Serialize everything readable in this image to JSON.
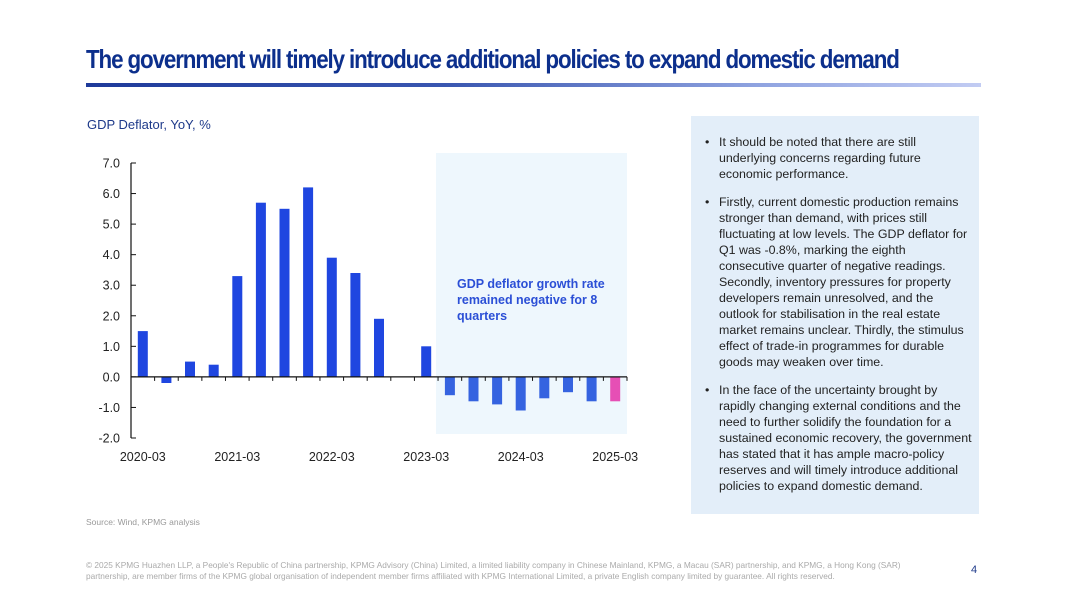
{
  "header": {
    "title": "The government will timely introduce additional policies to expand domestic demand"
  },
  "chart_data": {
    "type": "bar",
    "title": "GDP Deflator, YoY, %",
    "xlabel": "",
    "ylabel": "GDP Deflator, YoY, %",
    "ylim": [
      -2.0,
      7.0
    ],
    "yticks": [
      "7.0",
      "6.0",
      "5.0",
      "4.0",
      "3.0",
      "2.0",
      "1.0",
      "0.0",
      "-1.0",
      "-2.0"
    ],
    "xtick_labels": [
      "2020-03",
      "2021-03",
      "2022-03",
      "2023-03",
      "2024-03",
      "2025-03"
    ],
    "grid": false,
    "categories": [
      "2020-03",
      "2020-06",
      "2020-09",
      "2020-12",
      "2021-03",
      "2021-06",
      "2021-09",
      "2021-12",
      "2022-03",
      "2022-06",
      "2022-09",
      "2022-12",
      "2023-03",
      "2023-06",
      "2023-09",
      "2023-12",
      "2024-03",
      "2024-06",
      "2024-09",
      "2024-12",
      "2025-03"
    ],
    "series": [
      {
        "name": "GDP Deflator YoY",
        "values": [
          1.5,
          -0.2,
          0.5,
          0.4,
          3.3,
          5.7,
          5.5,
          6.2,
          3.9,
          3.4,
          1.9,
          0.0,
          1.0,
          -0.6,
          -0.8,
          -0.9,
          -1.1,
          -0.7,
          -0.5,
          -0.8,
          -0.8
        ]
      }
    ],
    "colors": {
      "bar": "#1f46e0",
      "bar_negative_period": "#3563e0",
      "bar_latest": "#e64fb5",
      "highlight_fill": "#eef7fd",
      "annotation_text": "#2b4fd6"
    },
    "highlight": {
      "from": "2023-06",
      "to": "2025-03",
      "annotation": "GDP deflator growth rate remained negative for 8 quarters"
    }
  },
  "panel": {
    "bullet_glyph": "•",
    "bullets": [
      "It should be noted that there are still underlying concerns regarding future economic performance.",
      "Firstly, current domestic production remains stronger than demand, with prices still fluctuating at low levels. The GDP deflator for Q1 was -0.8%, marking the eighth consecutive quarter of negative readings. Secondly, inventory pressures for property developers remain unresolved, and the outlook for stabilisation in the real estate market remains unclear. Thirdly, the stimulus effect of trade-in programmes for durable goods may weaken over time.",
      "In the face of the uncertainty brought by rapidly changing external conditions and the need to further solidify the foundation for a sustained economic recovery, the government has stated that it has ample macro-policy reserves and will timely introduce additional policies to expand domestic demand."
    ]
  },
  "source": "Source: Wind, KPMG analysis",
  "footer": "© 2025 KPMG Huazhen LLP, a People's Republic of China partnership, KPMG Advisory (China) Limited, a limited liability company in Chinese Mainland, KPMG, a Macau (SAR) partnership, and KPMG, a Hong Kong (SAR) partnership, are member firms of the KPMG global organisation of independent member firms affiliated with KPMG International Limited, a private English company limited by guarantee. All rights reserved.",
  "page_number": "4"
}
